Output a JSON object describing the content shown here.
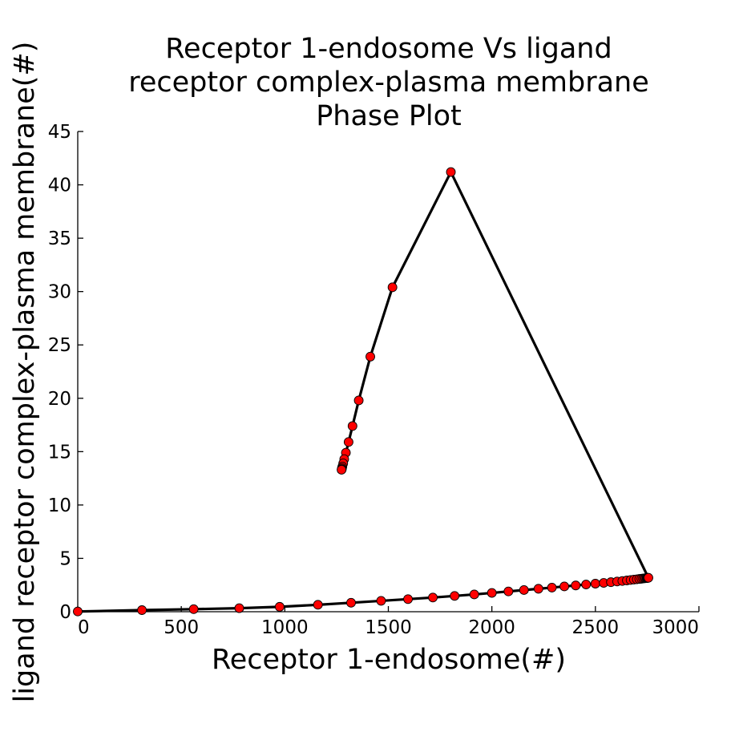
{
  "chart_data": {
    "type": "line",
    "title": [
      "Receptor 1-endosome Vs ligand",
      "receptor complex-plasma membrane",
      "Phase Plot"
    ],
    "xlabel": "Receptor 1-endosome(#)",
    "ylabel": "ligand receptor complex-plasma membrane(#)",
    "xlim": [
      0,
      3000
    ],
    "ylim": [
      0,
      45
    ],
    "xticks": [
      0,
      500,
      1000,
      1500,
      2000,
      2500,
      3000
    ],
    "yticks": [
      0,
      5,
      10,
      15,
      20,
      25,
      30,
      35,
      40,
      45
    ],
    "grid": false,
    "line_color": "#000000",
    "marker_color": "#ff0000",
    "series": [
      {
        "x": [
          0,
          310,
          560,
          780,
          975,
          1160,
          1320,
          1465,
          1595,
          1715,
          1820,
          1915,
          2000,
          2080,
          2155,
          2225,
          2290,
          2350,
          2405,
          2455,
          2500,
          2540,
          2575,
          2605,
          2630,
          2652,
          2670,
          2686,
          2700,
          2712,
          2722,
          2730,
          2737,
          2742,
          2747,
          2750,
          2752,
          2754,
          2755,
          2756,
          1802,
          1520,
          1413,
          1357,
          1327,
          1308,
          1295,
          1287,
          1282,
          1278,
          1276,
          1275,
          1274
        ],
        "y": [
          0.02,
          0.15,
          0.24,
          0.33,
          0.46,
          0.65,
          0.84,
          1.02,
          1.18,
          1.33,
          1.48,
          1.62,
          1.76,
          1.9,
          2.03,
          2.15,
          2.26,
          2.37,
          2.46,
          2.55,
          2.63,
          2.7,
          2.77,
          2.83,
          2.88,
          2.93,
          2.97,
          3.01,
          3.04,
          3.07,
          3.09,
          3.11,
          3.13,
          3.14,
          3.15,
          3.16,
          3.17,
          3.17,
          3.18,
          3.18,
          41.2,
          30.4,
          23.9,
          19.8,
          17.4,
          15.9,
          14.9,
          14.3,
          13.9,
          13.6,
          13.45,
          13.35,
          13.3
        ]
      }
    ]
  }
}
